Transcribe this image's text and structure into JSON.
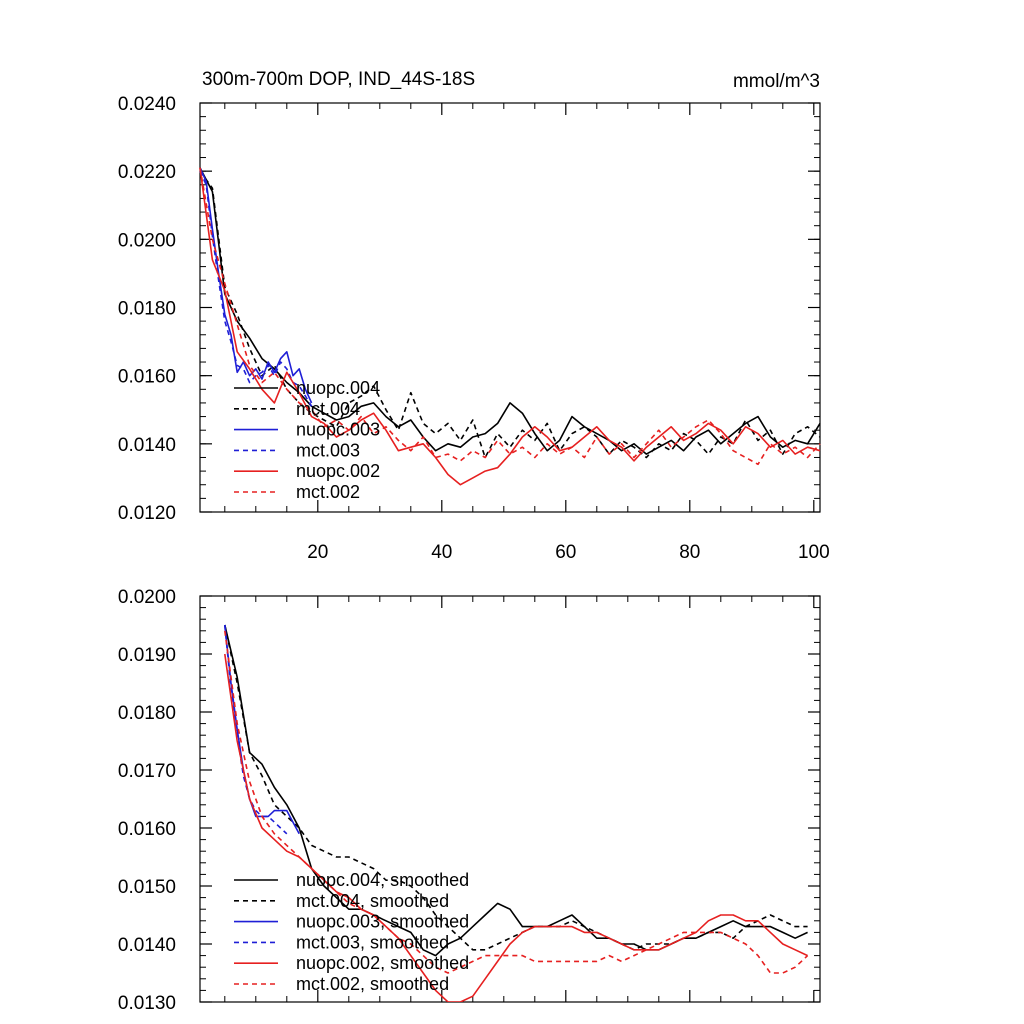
{
  "chart_data": [
    {
      "type": "line",
      "title": "300m-700m DOP, IND_44S-18S",
      "units": "mmol/m^3",
      "xlim": [
        1,
        101
      ],
      "ylim": [
        0.012,
        0.024
      ],
      "yticks": [
        "0.0120",
        "0.0140",
        "0.0160",
        "0.0180",
        "0.0200",
        "0.0220",
        "0.0240"
      ],
      "xticks": [
        "20",
        "40",
        "60",
        "80",
        "100"
      ],
      "legend": [
        "nuopc.004",
        "mct.004",
        "nuopc.003",
        "mct.003",
        "nuopc.002",
        "mct.002"
      ],
      "series": [
        {
          "name": "nuopc.004",
          "color": "#000000",
          "dash": false,
          "x": [
            1,
            3,
            5,
            7,
            9,
            11,
            13,
            15,
            17,
            19,
            21,
            23,
            25,
            27,
            29,
            31,
            33,
            35,
            37,
            39,
            41,
            43,
            45,
            47,
            49,
            51,
            53,
            55,
            57,
            59,
            61,
            63,
            65,
            67,
            69,
            71,
            73,
            75,
            77,
            79,
            81,
            83,
            85,
            87,
            89,
            91,
            93,
            95,
            97,
            99,
            101
          ],
          "y": [
            0.0221,
            0.0214,
            0.0184,
            0.0176,
            0.0171,
            0.0165,
            0.0162,
            0.0158,
            0.0155,
            0.0151,
            0.0149,
            0.0147,
            0.0148,
            0.0151,
            0.0152,
            0.0148,
            0.0145,
            0.0147,
            0.0142,
            0.0138,
            0.014,
            0.0139,
            0.0142,
            0.0143,
            0.0146,
            0.0152,
            0.0149,
            0.0143,
            0.0138,
            0.0141,
            0.0148,
            0.0145,
            0.0143,
            0.0141,
            0.0138,
            0.014,
            0.0137,
            0.0139,
            0.0141,
            0.0138,
            0.0142,
            0.0144,
            0.014,
            0.0143,
            0.0146,
            0.0148,
            0.0142,
            0.0139,
            0.0141,
            0.014,
            0.0146
          ]
        },
        {
          "name": "mct.004",
          "color": "#000000",
          "dash": true,
          "x": [
            1,
            3,
            5,
            7,
            9,
            11,
            13,
            15,
            17,
            19,
            21,
            23,
            25,
            27,
            29,
            31,
            33,
            35,
            37,
            39,
            41,
            43,
            45,
            47,
            49,
            51,
            53,
            55,
            57,
            59,
            61,
            63,
            65,
            67,
            69,
            71,
            73,
            75,
            77,
            79,
            81,
            83,
            85,
            87,
            89,
            91,
            93,
            95,
            97,
            99,
            101
          ],
          "y": [
            0.022,
            0.0215,
            0.0186,
            0.0178,
            0.0168,
            0.016,
            0.0163,
            0.0156,
            0.0152,
            0.0149,
            0.0147,
            0.0145,
            0.0152,
            0.0154,
            0.0157,
            0.015,
            0.0144,
            0.0155,
            0.0146,
            0.0143,
            0.0146,
            0.0141,
            0.0147,
            0.0136,
            0.0143,
            0.0139,
            0.0144,
            0.0141,
            0.0146,
            0.0138,
            0.0143,
            0.0145,
            0.0142,
            0.0137,
            0.0141,
            0.0139,
            0.0136,
            0.014,
            0.0138,
            0.0143,
            0.0141,
            0.0137,
            0.0142,
            0.014,
            0.0147,
            0.0141,
            0.0144,
            0.0137,
            0.0143,
            0.0145,
            0.0142
          ]
        },
        {
          "name": "nuopc.003",
          "color": "#1f1fd6",
          "dash": false,
          "x": [
            1,
            2,
            3,
            4,
            5,
            6,
            7,
            8,
            9,
            10,
            11,
            12,
            13,
            14,
            15,
            16,
            17,
            18,
            19
          ],
          "y": [
            0.0221,
            0.0217,
            0.0203,
            0.019,
            0.0178,
            0.0172,
            0.0161,
            0.0164,
            0.016,
            0.0162,
            0.0159,
            0.0164,
            0.0161,
            0.0165,
            0.0167,
            0.016,
            0.0162,
            0.0156,
            0.0152
          ]
        },
        {
          "name": "mct.003",
          "color": "#1f1fd6",
          "dash": true,
          "x": [
            1,
            2,
            3,
            4,
            5,
            6,
            7,
            8,
            9,
            10,
            11,
            12,
            13,
            14,
            15,
            16,
            17,
            18,
            19
          ],
          "y": [
            0.022,
            0.0216,
            0.0201,
            0.0188,
            0.0176,
            0.017,
            0.0163,
            0.0162,
            0.0158,
            0.016,
            0.0161,
            0.0163,
            0.016,
            0.0164,
            0.0162,
            0.0158,
            0.0157,
            0.0154,
            0.0151
          ]
        },
        {
          "name": "nuopc.002",
          "color": "#e62020",
          "dash": false,
          "x": [
            1,
            3,
            5,
            7,
            9,
            11,
            13,
            15,
            17,
            19,
            21,
            23,
            25,
            27,
            29,
            31,
            33,
            35,
            37,
            39,
            41,
            43,
            45,
            47,
            49,
            51,
            53,
            55,
            57,
            59,
            61,
            63,
            65,
            67,
            69,
            71,
            73,
            75,
            77,
            79,
            81,
            83,
            85,
            87,
            89,
            91,
            93,
            95,
            97,
            99,
            101
          ],
          "y": [
            0.0221,
            0.0194,
            0.0185,
            0.0167,
            0.0162,
            0.0156,
            0.0152,
            0.0161,
            0.0155,
            0.0148,
            0.0146,
            0.0142,
            0.0144,
            0.0147,
            0.0149,
            0.0144,
            0.0138,
            0.0139,
            0.014,
            0.0136,
            0.0131,
            0.0128,
            0.013,
            0.0132,
            0.0133,
            0.0137,
            0.0142,
            0.0145,
            0.0142,
            0.0138,
            0.0139,
            0.0142,
            0.0145,
            0.0141,
            0.0139,
            0.0135,
            0.0139,
            0.0142,
            0.0145,
            0.0141,
            0.0143,
            0.0146,
            0.0144,
            0.014,
            0.0145,
            0.0143,
            0.0139,
            0.0141,
            0.0137,
            0.0139,
            0.0138
          ]
        },
        {
          "name": "mct.002",
          "color": "#e62020",
          "dash": true,
          "x": [
            1,
            3,
            5,
            7,
            9,
            11,
            13,
            15,
            17,
            19,
            21,
            23,
            25,
            27,
            29,
            31,
            33,
            35,
            37,
            39,
            41,
            43,
            45,
            47,
            49,
            51,
            53,
            55,
            57,
            59,
            61,
            63,
            65,
            67,
            69,
            71,
            73,
            75,
            77,
            79,
            81,
            83,
            85,
            87,
            89,
            91,
            93,
            95,
            97,
            99,
            101
          ],
          "y": [
            0.0221,
            0.02,
            0.0187,
            0.0175,
            0.0163,
            0.0158,
            0.0161,
            0.0156,
            0.0152,
            0.015,
            0.0145,
            0.0147,
            0.0144,
            0.0148,
            0.0143,
            0.0145,
            0.0141,
            0.0138,
            0.0142,
            0.0136,
            0.0137,
            0.0135,
            0.0138,
            0.0136,
            0.0141,
            0.0137,
            0.0139,
            0.0136,
            0.014,
            0.0137,
            0.0139,
            0.0136,
            0.0142,
            0.0137,
            0.014,
            0.0136,
            0.014,
            0.0144,
            0.0139,
            0.0142,
            0.0145,
            0.0147,
            0.0143,
            0.0138,
            0.0136,
            0.0134,
            0.014,
            0.0137,
            0.0139,
            0.0136,
            0.014
          ]
        }
      ]
    },
    {
      "type": "line",
      "title": "",
      "xlim": [
        1,
        101
      ],
      "ylim": [
        0.013,
        0.02
      ],
      "yticks": [
        "0.0130",
        "0.0140",
        "0.0150",
        "0.0160",
        "0.0170",
        "0.0180",
        "0.0190",
        "0.0200"
      ],
      "legend": [
        "nuopc.004, smoothed",
        "mct.004, smoothed",
        "nuopc.003, smoothed",
        "mct.003, smoothed",
        "nuopc.002, smoothed",
        "mct.002, smoothed"
      ],
      "series": [
        {
          "name": "nuopc.004, smoothed",
          "color": "#000000",
          "dash": false,
          "x": [
            5,
            7,
            9,
            11,
            13,
            15,
            17,
            19,
            21,
            23,
            25,
            27,
            29,
            31,
            33,
            35,
            37,
            39,
            41,
            43,
            45,
            47,
            49,
            51,
            53,
            55,
            57,
            59,
            61,
            63,
            65,
            67,
            69,
            71,
            73,
            75,
            77,
            79,
            81,
            83,
            85,
            87,
            89,
            91,
            93,
            95,
            97,
            99
          ],
          "y": [
            0.0195,
            0.0186,
            0.0173,
            0.0171,
            0.0167,
            0.0164,
            0.016,
            0.0153,
            0.015,
            0.0148,
            0.0146,
            0.0146,
            0.0145,
            0.0144,
            0.0143,
            0.0142,
            0.0139,
            0.0138,
            0.014,
            0.0141,
            0.0143,
            0.0145,
            0.0147,
            0.0146,
            0.0143,
            0.0143,
            0.0143,
            0.0144,
            0.0145,
            0.0143,
            0.0141,
            0.0141,
            0.014,
            0.014,
            0.0139,
            0.0139,
            0.014,
            0.0141,
            0.0141,
            0.0142,
            0.0143,
            0.0144,
            0.0143,
            0.0143,
            0.0143,
            0.0142,
            0.0141,
            0.0142
          ]
        },
        {
          "name": "mct.004, smoothed",
          "color": "#000000",
          "dash": true,
          "x": [
            5,
            7,
            9,
            11,
            13,
            15,
            17,
            19,
            21,
            23,
            25,
            27,
            29,
            31,
            33,
            35,
            37,
            39,
            41,
            43,
            45,
            47,
            49,
            51,
            53,
            55,
            57,
            59,
            61,
            63,
            65,
            67,
            69,
            71,
            73,
            75,
            77,
            79,
            81,
            83,
            85,
            87,
            89,
            91,
            93,
            95,
            97,
            99
          ],
          "y": [
            0.0195,
            0.0185,
            0.0173,
            0.0169,
            0.0164,
            0.0162,
            0.016,
            0.0157,
            0.0156,
            0.0155,
            0.0155,
            0.0154,
            0.0153,
            0.0151,
            0.0151,
            0.015,
            0.0148,
            0.0145,
            0.0143,
            0.0141,
            0.0139,
            0.0139,
            0.014,
            0.0141,
            0.0142,
            0.0143,
            0.0143,
            0.0143,
            0.0144,
            0.0143,
            0.0142,
            0.0141,
            0.014,
            0.0139,
            0.014,
            0.014,
            0.014,
            0.0141,
            0.0141,
            0.0142,
            0.0142,
            0.0141,
            0.0143,
            0.0144,
            0.0145,
            0.0144,
            0.0143,
            0.0143
          ]
        },
        {
          "name": "nuopc.003, smoothed",
          "color": "#1f1fd6",
          "dash": false,
          "x": [
            5,
            6,
            7,
            8,
            9,
            10,
            11,
            12,
            13,
            14,
            15,
            16,
            17
          ],
          "y": [
            0.0195,
            0.0185,
            0.0177,
            0.017,
            0.0165,
            0.0162,
            0.0162,
            0.0162,
            0.0163,
            0.0163,
            0.0163,
            0.0161,
            0.0159
          ]
        },
        {
          "name": "mct.003, smoothed",
          "color": "#1f1fd6",
          "dash": true,
          "x": [
            5,
            6,
            7,
            8,
            9,
            10,
            11,
            12,
            13,
            14,
            15
          ],
          "y": [
            0.0195,
            0.0184,
            0.0176,
            0.0169,
            0.0165,
            0.0163,
            0.0162,
            0.0162,
            0.0161,
            0.016,
            0.0159
          ]
        },
        {
          "name": "nuopc.002, smoothed",
          "color": "#e62020",
          "dash": false,
          "x": [
            5,
            7,
            9,
            11,
            13,
            15,
            17,
            19,
            21,
            23,
            25,
            27,
            29,
            31,
            33,
            35,
            37,
            39,
            41,
            43,
            45,
            47,
            49,
            51,
            53,
            55,
            57,
            59,
            61,
            63,
            65,
            67,
            69,
            71,
            73,
            75,
            77,
            79,
            81,
            83,
            85,
            87,
            89,
            91,
            93,
            95,
            97,
            99
          ],
          "y": [
            0.019,
            0.0175,
            0.0165,
            0.016,
            0.0158,
            0.0156,
            0.0155,
            0.0153,
            0.0151,
            0.0149,
            0.0148,
            0.0146,
            0.0145,
            0.0143,
            0.0141,
            0.0138,
            0.0135,
            0.0132,
            0.013,
            0.013,
            0.0131,
            0.0134,
            0.0137,
            0.014,
            0.0142,
            0.0143,
            0.0143,
            0.0143,
            0.0143,
            0.0142,
            0.0142,
            0.0141,
            0.014,
            0.0139,
            0.0139,
            0.0139,
            0.014,
            0.0141,
            0.0142,
            0.0144,
            0.0145,
            0.0145,
            0.0144,
            0.0144,
            0.0142,
            0.014,
            0.0139,
            0.0138
          ]
        },
        {
          "name": "mct.002, smoothed",
          "color": "#e62020",
          "dash": true,
          "x": [
            5,
            7,
            9,
            11,
            13,
            15,
            17,
            19,
            21,
            23,
            25,
            27,
            29,
            31,
            33,
            35,
            37,
            39,
            41,
            43,
            45,
            47,
            49,
            51,
            53,
            55,
            57,
            59,
            61,
            63,
            65,
            67,
            69,
            71,
            73,
            75,
            77,
            79,
            81,
            83,
            85,
            87,
            89,
            91,
            93,
            95,
            97,
            99
          ],
          "y": [
            0.0194,
            0.0178,
            0.0168,
            0.0162,
            0.0159,
            0.0157,
            0.0155,
            0.0153,
            0.0151,
            0.0149,
            0.0147,
            0.0146,
            0.0145,
            0.0143,
            0.0141,
            0.014,
            0.0138,
            0.0136,
            0.0135,
            0.0136,
            0.0137,
            0.0138,
            0.0138,
            0.0138,
            0.0138,
            0.0137,
            0.0137,
            0.0137,
            0.0137,
            0.0137,
            0.0137,
            0.0138,
            0.0137,
            0.0138,
            0.0139,
            0.014,
            0.0141,
            0.0142,
            0.0142,
            0.0142,
            0.0142,
            0.0141,
            0.014,
            0.0138,
            0.0135,
            0.0135,
            0.0136,
            0.0138
          ]
        }
      ]
    }
  ]
}
